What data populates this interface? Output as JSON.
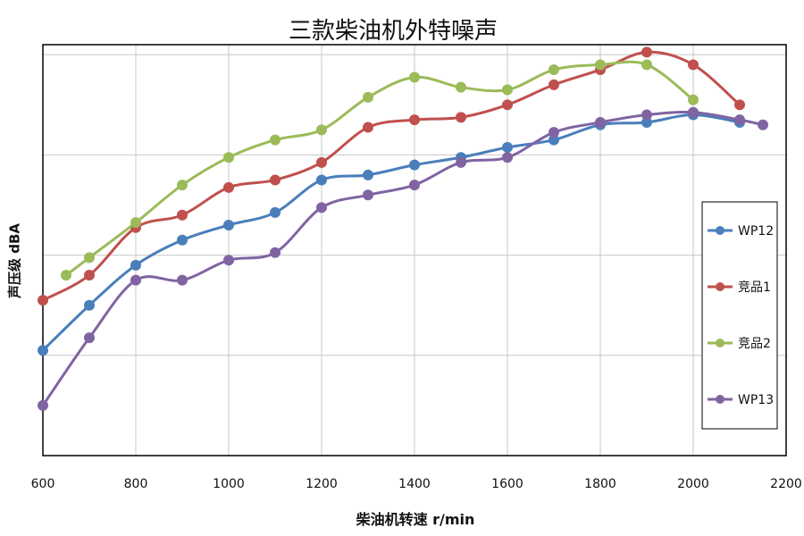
{
  "chart_data": {
    "type": "line",
    "title": "三款柴油机外特噪声",
    "xlabel": "柴油机转速 r/min",
    "ylabel": "声压级 dBA",
    "xlim": [
      600,
      2200
    ],
    "x_ticks": [
      600,
      800,
      1000,
      1200,
      1400,
      1600,
      1800,
      2000,
      2200
    ],
    "ylim": [
      0,
      8.2
    ],
    "y_tick_labels_visible": false,
    "grid": true,
    "legend_position": "right",
    "series": [
      {
        "name": "WP12",
        "color": "#4a7ebb",
        "x": [
          600,
          700,
          800,
          900,
          1000,
          1100,
          1200,
          1300,
          1400,
          1500,
          1600,
          1700,
          1800,
          1900,
          2000,
          2100
        ],
        "y": [
          2.1,
          3.0,
          3.8,
          4.3,
          4.6,
          4.85,
          5.5,
          5.6,
          5.8,
          5.95,
          6.15,
          6.3,
          6.6,
          6.65,
          6.8,
          6.65
        ]
      },
      {
        "name": "竞品1",
        "color": "#c0504d",
        "x": [
          600,
          700,
          800,
          900,
          1000,
          1100,
          1200,
          1300,
          1400,
          1500,
          1600,
          1700,
          1800,
          1900,
          2000,
          2100
        ],
        "y": [
          3.1,
          3.6,
          4.55,
          4.8,
          5.35,
          5.5,
          5.85,
          6.55,
          6.7,
          6.75,
          7.0,
          7.4,
          7.7,
          8.05,
          7.8,
          7.0
        ]
      },
      {
        "name": "竞品2",
        "color": "#9bbb59",
        "x": [
          650,
          700,
          800,
          900,
          1000,
          1100,
          1200,
          1300,
          1400,
          1500,
          1600,
          1700,
          1800,
          1900,
          2000
        ],
        "y": [
          3.6,
          3.95,
          4.65,
          5.4,
          5.95,
          6.3,
          6.5,
          7.15,
          7.55,
          7.35,
          7.3,
          7.7,
          7.8,
          7.8,
          7.1
        ]
      },
      {
        "name": "WP13",
        "color": "#8064a2",
        "x": [
          600,
          700,
          800,
          900,
          1000,
          1100,
          1200,
          1300,
          1400,
          1500,
          1600,
          1700,
          1800,
          1900,
          2000,
          2100,
          2150
        ],
        "y": [
          1.0,
          2.35,
          3.5,
          3.5,
          3.9,
          4.05,
          4.95,
          5.2,
          5.4,
          5.85,
          5.95,
          6.45,
          6.65,
          6.8,
          6.85,
          6.7,
          6.6
        ]
      }
    ]
  }
}
